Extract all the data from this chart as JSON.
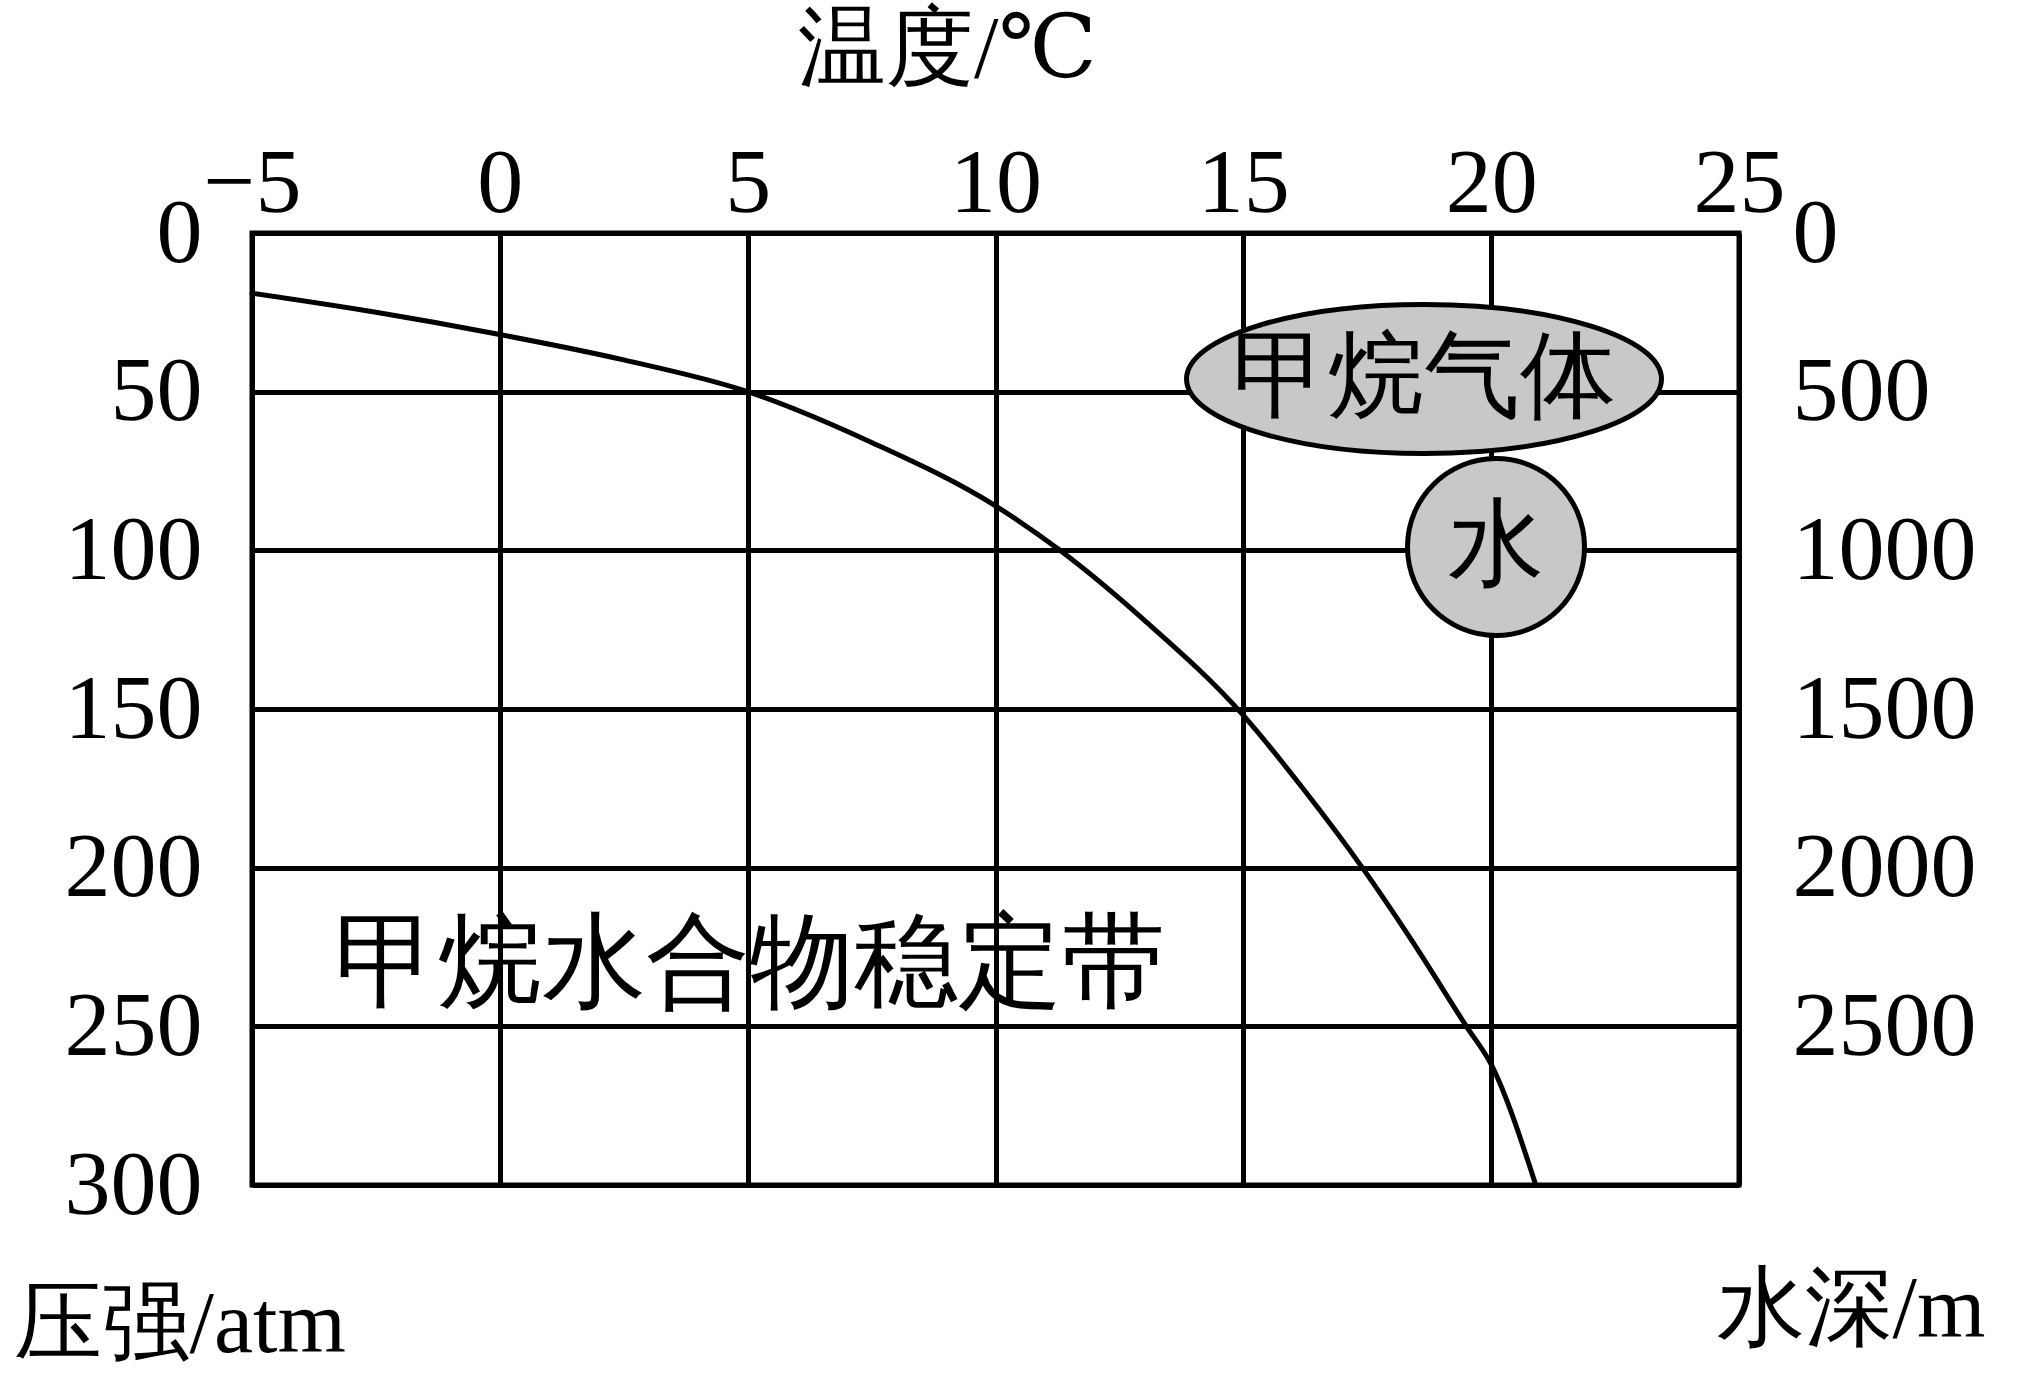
{
  "chart_data": {
    "type": "line",
    "xlabel": "温度/℃",
    "ylabel": "压强/atm",
    "y2label": "水深/m",
    "x": [
      -5,
      -2.5,
      0,
      2.5,
      5,
      7.5,
      10,
      11.3,
      13,
      15,
      16.2,
      17.4,
      18.4,
      19.5,
      20,
      20.9
    ],
    "series": [
      {
        "color": "#000000",
        "values": [
          19,
          25,
          32,
          40,
          50,
          66,
          86,
          100,
          122,
          152,
          175,
          200,
          223,
          250,
          262,
          300
        ]
      }
    ],
    "xlim": [
      -5,
      25
    ],
    "xticks": [
      -5,
      0,
      5,
      10,
      15,
      20,
      25
    ],
    "ylim": [
      300,
      0
    ],
    "yticks": [
      0,
      50,
      100,
      150,
      200,
      250,
      300
    ],
    "y2lim": [
      3000,
      0
    ],
    "y2ticks": [
      0,
      500,
      1000,
      1500,
      2000,
      2500
    ],
    "grid": true,
    "line_style": "solid",
    "annotations": [
      "甲烷气体",
      "水",
      "甲烷水合物稳定带"
    ]
  }
}
